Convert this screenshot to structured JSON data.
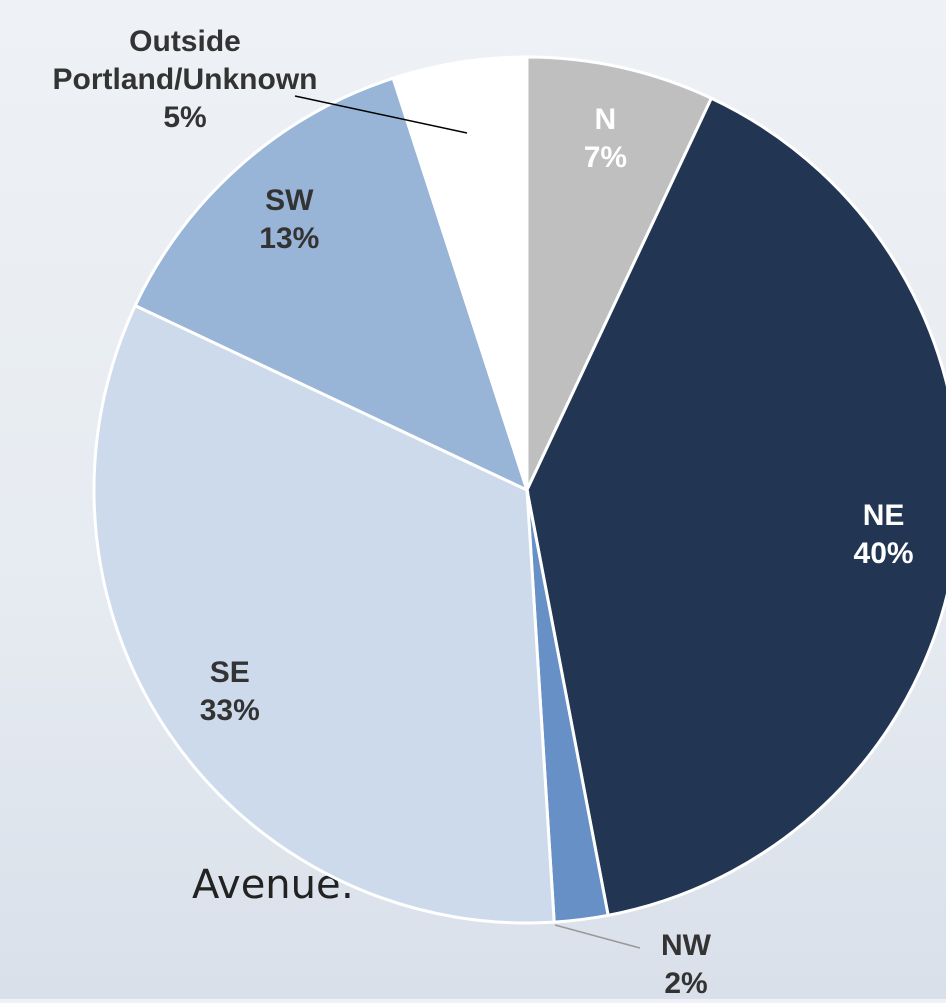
{
  "slide_text": "Avenue:",
  "chart_data": {
    "type": "pie",
    "categories": [
      "N",
      "NE",
      "NW",
      "SE",
      "SW",
      "Outside Portland/Unknown"
    ],
    "values": [
      7,
      40,
      2,
      33,
      13,
      5
    ],
    "value_labels": [
      "7%",
      "40%",
      "2%",
      "33%",
      "13%",
      "5%"
    ],
    "colors": [
      "#bfbfbf",
      "#223654",
      "#6690c6",
      "#ccdaec",
      "#98b4d6",
      "#ffffff"
    ],
    "label_colors": [
      "#ffffff",
      "#ffffff",
      "#333333",
      "#333333",
      "#333333",
      "#333333"
    ]
  }
}
